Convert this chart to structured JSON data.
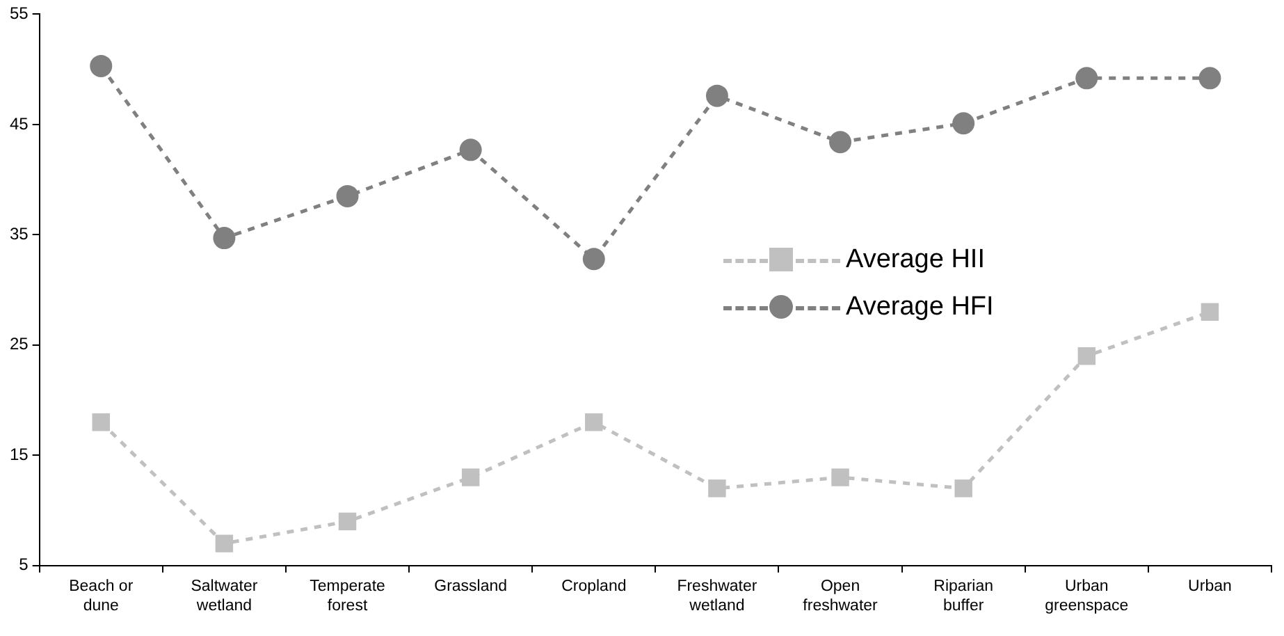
{
  "chart_data": {
    "type": "line",
    "categories": [
      "Beach or dune",
      "Saltwater wetland",
      "Temperate forest",
      "Grassland",
      "Cropland",
      "Freshwater wetland",
      "Open freshwater",
      "Riparian buffer",
      "Urban greenspace",
      "Urban"
    ],
    "series": [
      {
        "name": "Average HII",
        "color": "#c0c0c0",
        "marker": "square",
        "values": [
          18,
          7,
          9,
          13,
          18,
          12,
          13,
          12,
          24,
          28
        ]
      },
      {
        "name": "Average HFI",
        "color": "#808080",
        "marker": "circle",
        "values": [
          50.3,
          34.7,
          38.5,
          42.7,
          32.8,
          47.6,
          43.4,
          45.1,
          49.2,
          49.2
        ]
      }
    ],
    "ylim": [
      5,
      55
    ],
    "yticks": [
      5,
      15,
      25,
      35,
      45,
      55
    ],
    "grid": false,
    "legend": "right",
    "line_style": "dashed"
  }
}
